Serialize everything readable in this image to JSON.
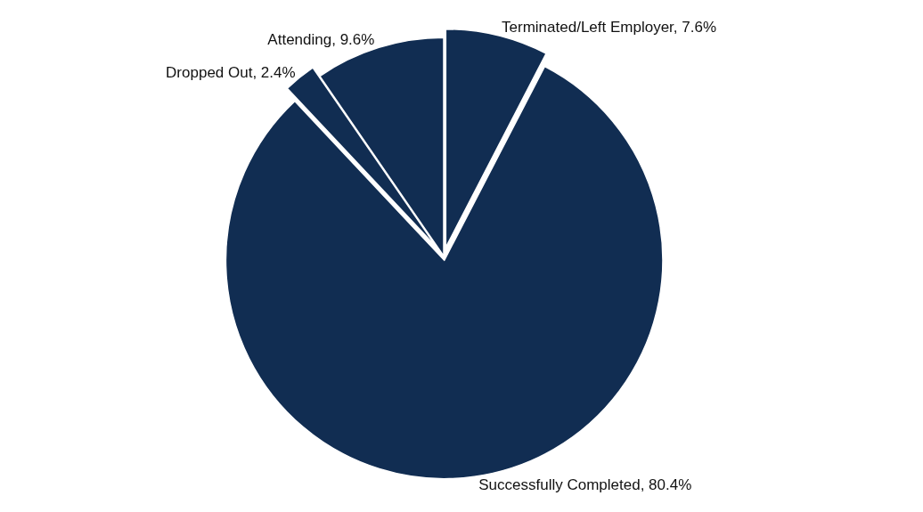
{
  "chart_data": {
    "type": "pie",
    "categories": [
      "Terminated/Left Employer",
      "Successfully Completed",
      "Dropped Out",
      "Attending"
    ],
    "values": [
      7.6,
      80.4,
      2.4,
      9.6
    ],
    "value_labels": [
      "7.6%",
      "80.4%",
      "2.4%",
      "9.6%"
    ],
    "colors": [
      "#112d52",
      "#112d52",
      "#112d52",
      "#112d52"
    ],
    "legend": false
  }
}
